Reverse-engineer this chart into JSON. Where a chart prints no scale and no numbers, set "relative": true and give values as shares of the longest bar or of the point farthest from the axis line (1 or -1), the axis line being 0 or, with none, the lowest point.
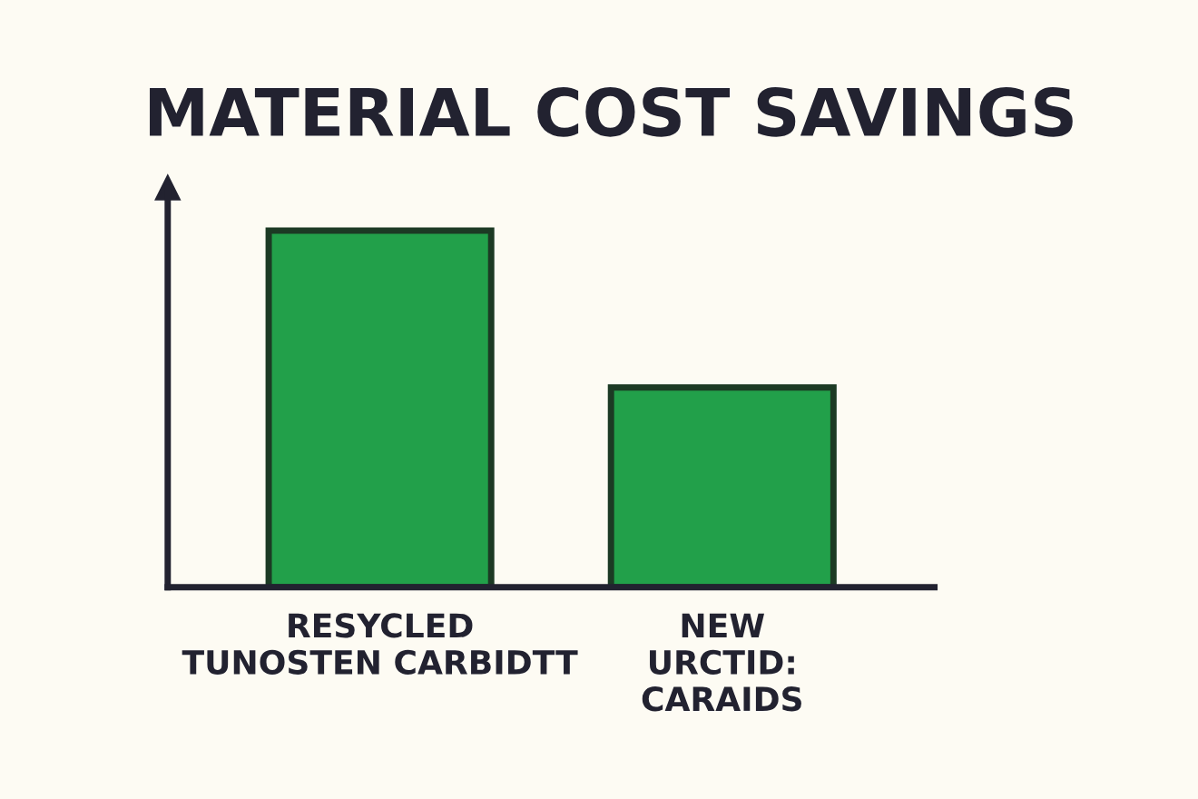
{
  "chart_data": {
    "type": "bar",
    "title": "MATERIAL COST SAVINGS",
    "relative": true,
    "categories": [
      "RESYCLED\nTUNOSTEN CARBIDTT",
      "NEW\nURCTID:\nCARAIDS"
    ],
    "values": [
      1,
      0.56
    ],
    "color": "#22a04a",
    "grid": false
  }
}
